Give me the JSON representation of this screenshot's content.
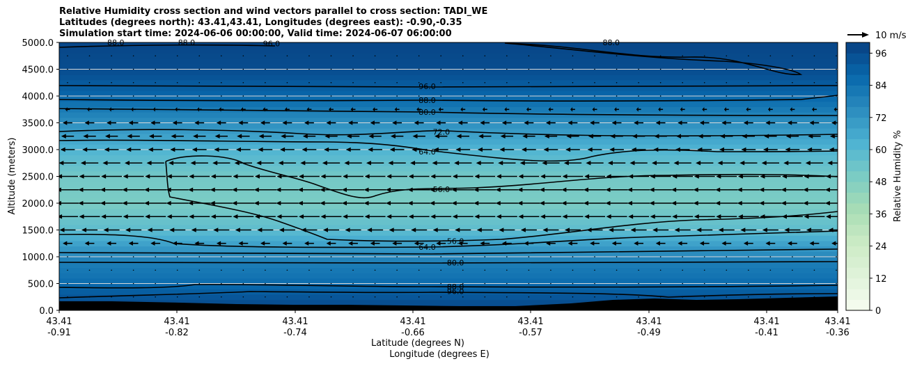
{
  "chart_data": {
    "type": "heatmap",
    "title_lines": [
      "Relative Humidity cross section and wind vectors parallel to cross section: TADI_WE",
      "Latitudes (degrees north): 43.41,43.41, Longitudes (degrees east): -0.90,-0.35",
      "Simulation start time: 2024-06-06 00:00:00, Valid time: 2024-06-07 06:00:00"
    ],
    "ylabel": "Altitude (meters)",
    "xlabel_line1": "Latitude (degrees N)",
    "xlabel_line2": "Longitude (degrees E)",
    "ylim": [
      0,
      5000
    ],
    "xlim": [
      -0.91,
      -0.36
    ],
    "y_ticks": [
      0,
      500,
      1000,
      1500,
      2000,
      2500,
      3000,
      3500,
      4000,
      4500,
      5000
    ],
    "y_tick_labels": [
      "0.0",
      "500.0",
      "1000.0",
      "1500.0",
      "2000.0",
      "2500.0",
      "3000.0",
      "3500.0",
      "4000.0",
      "4500.0",
      "5000.0"
    ],
    "x_ticks": [
      {
        "lat": "43.41",
        "lon": "-0.91"
      },
      {
        "lat": "43.41",
        "lon": "-0.82"
      },
      {
        "lat": "43.41",
        "lon": "-0.74"
      },
      {
        "lat": "43.41",
        "lon": "-0.66"
      },
      {
        "lat": "43.41",
        "lon": "-0.57"
      },
      {
        "lat": "43.41",
        "lon": "-0.49"
      },
      {
        "lat": "43.41",
        "lon": "-0.41"
      },
      {
        "lat": "43.41",
        "lon": "-0.36"
      }
    ],
    "colorbar": {
      "label": "Relative Humidity %",
      "ticks": [
        "0",
        "12",
        "24",
        "36",
        "48",
        "60",
        "72",
        "84",
        "96"
      ],
      "range": [
        0,
        100
      ],
      "levels": 25
    },
    "quiver_key": "10 m/s",
    "rh_profile": [
      {
        "alt": 0,
        "rh": 99
      },
      {
        "alt": 300,
        "rh": 92
      },
      {
        "alt": 600,
        "rh": 84
      },
      {
        "alt": 900,
        "rh": 80
      },
      {
        "alt": 1200,
        "rh": 70
      },
      {
        "alt": 1500,
        "rh": 58
      },
      {
        "alt": 2000,
        "rh": 50
      },
      {
        "alt": 2500,
        "rh": 52
      },
      {
        "alt": 3000,
        "rh": 62
      },
      {
        "alt": 3500,
        "rh": 74
      },
      {
        "alt": 4000,
        "rh": 88
      },
      {
        "alt": 4500,
        "rh": 96
      },
      {
        "alt": 5000,
        "rh": 98
      }
    ],
    "wind_profile": [
      {
        "alt": 1250,
        "speed": 6
      },
      {
        "alt": 1500,
        "speed": 10
      },
      {
        "alt": 1750,
        "speed": 13
      },
      {
        "alt": 2000,
        "speed": 14
      },
      {
        "alt": 2250,
        "speed": 14
      },
      {
        "alt": 2500,
        "speed": 13
      },
      {
        "alt": 2750,
        "speed": 11
      },
      {
        "alt": 3000,
        "speed": 9
      },
      {
        "alt": 3250,
        "speed": 8
      },
      {
        "alt": 3500,
        "speed": 6
      },
      {
        "alt": 3750,
        "speed": 3
      }
    ],
    "contour_labels": [
      {
        "text": "88.0",
        "lon": -0.87,
        "alt": 5000
      },
      {
        "text": "88.0",
        "lon": -0.82,
        "alt": 5000
      },
      {
        "text": "96.0",
        "lon": -0.76,
        "alt": 4980
      },
      {
        "text": "88.0",
        "lon": -0.52,
        "alt": 5000
      },
      {
        "text": "96.0",
        "lon": -0.65,
        "alt": 4180
      },
      {
        "text": "88.0",
        "lon": -0.65,
        "alt": 3920
      },
      {
        "text": "80.0",
        "lon": -0.65,
        "alt": 3700
      },
      {
        "text": "72.0",
        "lon": -0.64,
        "alt": 3330
      },
      {
        "text": "64.0",
        "lon": -0.65,
        "alt": 2960
      },
      {
        "text": "56.0",
        "lon": -0.64,
        "alt": 2260
      },
      {
        "text": "56.0",
        "lon": -0.63,
        "alt": 1290
      },
      {
        "text": "64.0",
        "lon": -0.65,
        "alt": 1180
      },
      {
        "text": "80.0",
        "lon": -0.63,
        "alt": 890
      },
      {
        "text": "88.0",
        "lon": -0.63,
        "alt": 440
      },
      {
        "text": "96.0",
        "lon": -0.63,
        "alt": 360
      }
    ]
  }
}
